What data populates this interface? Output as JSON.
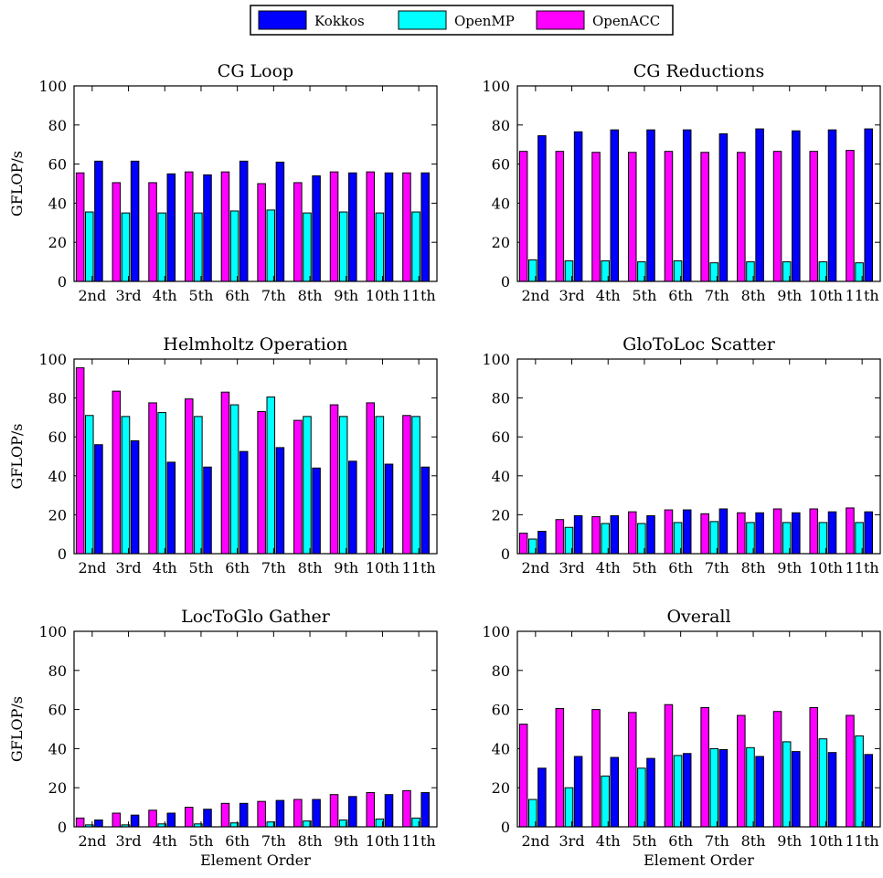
{
  "legend": {
    "placement": "top-center",
    "entries": [
      {
        "name": "Kokkos",
        "color": "#0000ff"
      },
      {
        "name": "OpenMP",
        "color": "#00ffff"
      },
      {
        "name": "OpenACC",
        "color": "#ff00ff"
      }
    ]
  },
  "chart_data": [
    {
      "type": "bar",
      "title": "CG Loop",
      "xlabel": "",
      "ylabel": "GFLOP/s",
      "ylim": [
        0,
        100
      ],
      "yticks": [
        0,
        20,
        40,
        60,
        80,
        100
      ],
      "grid": false,
      "categories": [
        "2nd",
        "3rd",
        "4th",
        "5th",
        "6th",
        "7th",
        "8th",
        "9th",
        "10th",
        "11th"
      ],
      "series": [
        {
          "name": "OpenACC",
          "color": "#ff00ff",
          "values": [
            55.5,
            50.5,
            50.5,
            56,
            56,
            50,
            50.5,
            56,
            56,
            55.5
          ]
        },
        {
          "name": "OpenMP",
          "color": "#00ffff",
          "values": [
            35.5,
            35,
            35,
            35,
            36,
            36.5,
            35,
            35.5,
            35,
            35.5
          ]
        },
        {
          "name": "Kokkos",
          "color": "#0000ff",
          "values": [
            61.5,
            61.5,
            55,
            54.5,
            61.5,
            61,
            54,
            55.5,
            55.5,
            55.5
          ]
        }
      ]
    },
    {
      "type": "bar",
      "title": "CG Reductions",
      "xlabel": "",
      "ylabel": "",
      "ylim": [
        0,
        100
      ],
      "yticks": [
        0,
        20,
        40,
        60,
        80,
        100
      ],
      "grid": false,
      "categories": [
        "2nd",
        "3rd",
        "4th",
        "5th",
        "6th",
        "7th",
        "8th",
        "9th",
        "10th",
        "11th"
      ],
      "series": [
        {
          "name": "OpenACC",
          "color": "#ff00ff",
          "values": [
            66.5,
            66.5,
            66,
            66,
            66.5,
            66,
            66,
            66.5,
            66.5,
            67
          ]
        },
        {
          "name": "OpenMP",
          "color": "#00ffff",
          "values": [
            11,
            10.5,
            10.5,
            10,
            10.5,
            9.5,
            10,
            10,
            10,
            9.5
          ]
        },
        {
          "name": "Kokkos",
          "color": "#0000ff",
          "values": [
            74.5,
            76.5,
            77.5,
            77.5,
            77.5,
            75.5,
            78,
            77,
            77.5,
            78
          ]
        }
      ]
    },
    {
      "type": "bar",
      "title": "Helmholtz Operation",
      "xlabel": "",
      "ylabel": "GFLOP/s",
      "ylim": [
        0,
        100
      ],
      "yticks": [
        0,
        20,
        40,
        60,
        80,
        100
      ],
      "grid": false,
      "categories": [
        "2nd",
        "3rd",
        "4th",
        "5th",
        "6th",
        "7th",
        "8th",
        "9th",
        "10th",
        "11th"
      ],
      "series": [
        {
          "name": "OpenACC",
          "color": "#ff00ff",
          "values": [
            95.5,
            83.5,
            77.5,
            79.5,
            83,
            73,
            68.5,
            76.5,
            77.5,
            71
          ]
        },
        {
          "name": "OpenMP",
          "color": "#00ffff",
          "values": [
            71,
            70.5,
            72.5,
            70.5,
            76.5,
            80.5,
            70.5,
            70.5,
            70.5,
            70.5
          ]
        },
        {
          "name": "Kokkos",
          "color": "#0000ff",
          "values": [
            56,
            58,
            47,
            44.5,
            52.5,
            54.5,
            44,
            47.5,
            46,
            44.5
          ]
        }
      ]
    },
    {
      "type": "bar",
      "title": "GloToLoc Scatter",
      "xlabel": "",
      "ylabel": "",
      "ylim": [
        0,
        100
      ],
      "yticks": [
        0,
        20,
        40,
        60,
        80,
        100
      ],
      "grid": false,
      "categories": [
        "2nd",
        "3rd",
        "4th",
        "5th",
        "6th",
        "7th",
        "8th",
        "9th",
        "10th",
        "11th"
      ],
      "series": [
        {
          "name": "OpenACC",
          "color": "#ff00ff",
          "values": [
            10.5,
            17.5,
            19,
            21.5,
            22.5,
            20.5,
            21,
            23,
            23,
            23.5
          ]
        },
        {
          "name": "OpenMP",
          "color": "#00ffff",
          "values": [
            7.5,
            13.5,
            15.5,
            15.5,
            16,
            16.5,
            16,
            16,
            16,
            16
          ]
        },
        {
          "name": "Kokkos",
          "color": "#0000ff",
          "values": [
            11.5,
            19.5,
            19.5,
            19.5,
            22.5,
            23,
            21,
            21,
            21.5,
            21.5
          ]
        }
      ]
    },
    {
      "type": "bar",
      "title": "LocToGlo Gather",
      "xlabel": "Element Order",
      "ylabel": "GFLOP/s",
      "ylim": [
        0,
        100
      ],
      "yticks": [
        0,
        20,
        40,
        60,
        80,
        100
      ],
      "grid": false,
      "categories": [
        "2nd",
        "3rd",
        "4th",
        "5th",
        "6th",
        "7th",
        "8th",
        "9th",
        "10th",
        "11th"
      ],
      "series": [
        {
          "name": "OpenACC",
          "color": "#ff00ff",
          "values": [
            4.5,
            7,
            8.5,
            10,
            12,
            13,
            14,
            16.5,
            17.5,
            18.5
          ]
        },
        {
          "name": "OpenMP",
          "color": "#00ffff",
          "values": [
            1,
            1,
            1.5,
            1.5,
            2,
            2.5,
            3,
            3.5,
            4,
            4.5
          ]
        },
        {
          "name": "Kokkos",
          "color": "#0000ff",
          "values": [
            3.5,
            6,
            7,
            9,
            12,
            13.5,
            14,
            15.5,
            16.5,
            17.5
          ]
        }
      ]
    },
    {
      "type": "bar",
      "title": "Overall",
      "xlabel": "Element Order",
      "ylabel": "",
      "ylim": [
        0,
        100
      ],
      "yticks": [
        0,
        20,
        40,
        60,
        80,
        100
      ],
      "grid": false,
      "categories": [
        "2nd",
        "3rd",
        "4th",
        "5th",
        "6th",
        "7th",
        "8th",
        "9th",
        "10th",
        "11th"
      ],
      "series": [
        {
          "name": "OpenACC",
          "color": "#ff00ff",
          "values": [
            52.5,
            60.5,
            60,
            58.5,
            62.5,
            61,
            57,
            59,
            61,
            57
          ]
        },
        {
          "name": "OpenMP",
          "color": "#00ffff",
          "values": [
            14,
            20,
            26,
            30,
            36.5,
            40,
            40.5,
            43.5,
            45,
            46.5
          ]
        },
        {
          "name": "Kokkos",
          "color": "#0000ff",
          "values": [
            30,
            36,
            35.5,
            35,
            37.5,
            39.5,
            36,
            38.5,
            38,
            37
          ]
        }
      ]
    }
  ]
}
